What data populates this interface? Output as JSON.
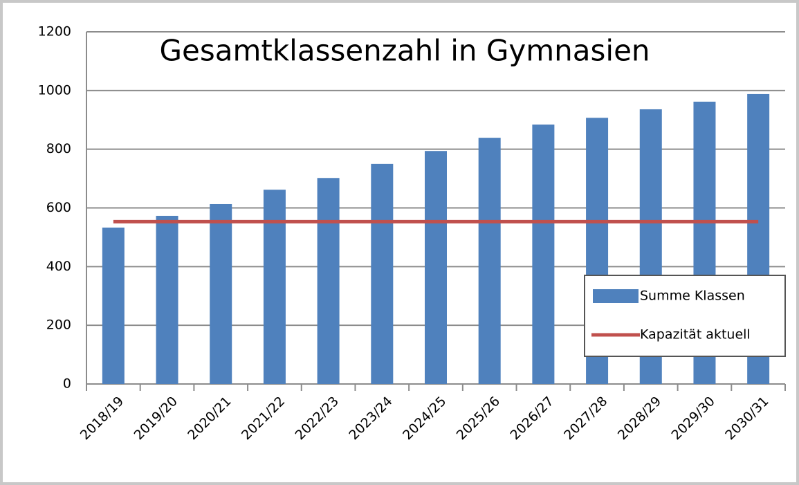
{
  "chart_data": {
    "type": "bar",
    "title": "Gesamtklassenzahl in Gymnasien",
    "categories": [
      "2018/19",
      "2019/20",
      "2020/21",
      "2021/22",
      "2022/23",
      "2023/24",
      "2024/25",
      "2025/26",
      "2026/27",
      "2027/28",
      "2028/29",
      "2029/30",
      "2030/31"
    ],
    "series": [
      {
        "name": "Summe Klassen",
        "type": "bar",
        "color": "#4f81bd",
        "values": [
          533,
          573,
          613,
          662,
          702,
          750,
          794,
          839,
          884,
          907,
          936,
          962,
          988
        ]
      },
      {
        "name": "Kapazität aktuell",
        "type": "line",
        "color": "#c0504d",
        "values": [
          553,
          553,
          553,
          553,
          553,
          553,
          553,
          553,
          553,
          553,
          553,
          553,
          553
        ]
      }
    ],
    "ylim": [
      0,
      1200
    ],
    "yticks": [
      0,
      200,
      400,
      600,
      800,
      1000,
      1200
    ],
    "grid": true,
    "legend": "right"
  }
}
